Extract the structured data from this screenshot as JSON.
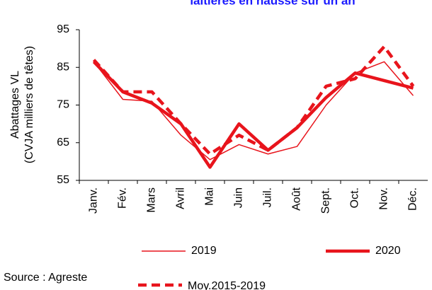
{
  "chart_data": {
    "type": "line",
    "title": "laitières en hausse sur un an",
    "y_label": [
      "Abattages VL",
      "(CVJA milliers de têtes)"
    ],
    "source": "Source : Agreste",
    "categories": [
      "Janv.",
      "Fév.",
      "Mars",
      "Avril",
      "Mai",
      "Juin",
      "Juil.",
      "Août",
      "Sept.",
      "Oct.",
      "Nov.",
      "Déc."
    ],
    "series": [
      {
        "name": "2019",
        "color": "#e8141c",
        "style": "thin",
        "values": [
          86.5,
          76.5,
          76,
          67,
          60.5,
          64.5,
          62,
          64,
          75,
          83.5,
          86.5,
          77.5
        ]
      },
      {
        "name": "2020",
        "color": "#e8141c",
        "style": "thick",
        "values": [
          86.5,
          78.5,
          75.5,
          70,
          58.5,
          70,
          63,
          69,
          77,
          83.5,
          81.5,
          79.5
        ]
      },
      {
        "name": "Moy.2015-2019",
        "color": "#e8141c",
        "style": "dashed",
        "values": [
          87,
          78.5,
          78.5,
          70,
          62,
          67,
          63,
          69,
          80,
          82,
          90.5,
          80
        ]
      }
    ],
    "ylim": [
      55,
      95
    ],
    "yticks": [
      55,
      65,
      75,
      85,
      95
    ]
  }
}
